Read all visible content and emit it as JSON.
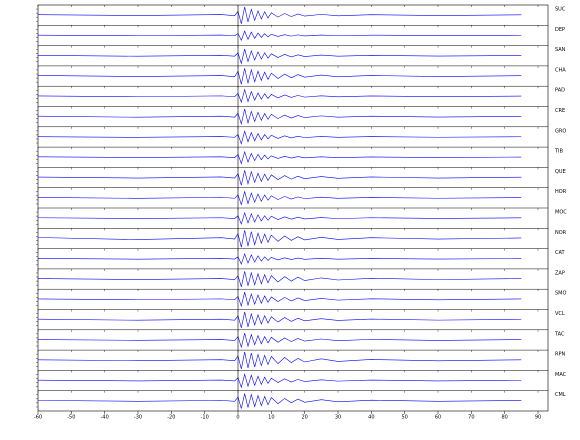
{
  "chart_data": {
    "type": "line",
    "color": "#0000ff",
    "x": [
      -60,
      -30,
      -5,
      -1,
      0,
      1,
      2,
      3,
      4,
      5,
      6,
      7,
      8,
      9,
      10,
      12,
      14,
      16,
      18,
      20,
      25,
      30,
      40,
      60,
      85
    ],
    "xlim": [
      -60,
      93
    ],
    "xticks": [
      -60,
      -50,
      -40,
      -30,
      -20,
      -10,
      0,
      10,
      20,
      30,
      40,
      50,
      60,
      70,
      80,
      90
    ],
    "ylim": [
      -1,
      1
    ],
    "series": [
      {
        "name": "SUC",
        "values": [
          0.05,
          -0.04,
          0.06,
          -0.05,
          0.4,
          -0.9,
          0.85,
          -0.7,
          0.6,
          -0.55,
          0.45,
          -0.4,
          0.35,
          -0.3,
          0.25,
          -0.2,
          0.18,
          -0.15,
          0.12,
          -0.1,
          0.08,
          -0.07,
          0.05,
          -0.04,
          0.03
        ]
      },
      {
        "name": "DEP",
        "values": [
          0.03,
          -0.03,
          0.04,
          -0.03,
          0.2,
          -0.5,
          0.45,
          -0.4,
          0.35,
          -0.3,
          0.25,
          -0.2,
          0.18,
          -0.15,
          0.12,
          -0.1,
          0.08,
          -0.07,
          0.06,
          -0.05,
          0.04,
          -0.03,
          0.03,
          -0.02,
          0.02
        ]
      },
      {
        "name": "SAN",
        "values": [
          0.04,
          -0.05,
          0.04,
          -0.04,
          0.3,
          -0.8,
          0.7,
          -0.6,
          0.5,
          -0.45,
          0.4,
          -0.35,
          0.3,
          -0.25,
          0.2,
          -0.18,
          0.15,
          -0.12,
          0.1,
          -0.08,
          0.07,
          -0.05,
          0.04,
          -0.03,
          0.03
        ]
      },
      {
        "name": "CHA",
        "values": [
          0.06,
          -0.05,
          0.05,
          -0.06,
          0.5,
          -0.85,
          0.8,
          -0.75,
          0.65,
          -0.6,
          0.5,
          -0.45,
          0.4,
          -0.35,
          0.3,
          -0.25,
          0.2,
          -0.18,
          0.15,
          -0.12,
          0.1,
          -0.08,
          0.06,
          -0.05,
          0.04
        ]
      },
      {
        "name": "PAD",
        "values": [
          0.04,
          -0.04,
          0.05,
          -0.04,
          0.3,
          -0.6,
          0.7,
          -0.55,
          0.5,
          -0.4,
          0.35,
          -0.3,
          0.28,
          -0.22,
          0.2,
          -0.16,
          0.14,
          -0.11,
          0.1,
          -0.08,
          0.06,
          -0.05,
          0.04,
          -0.03,
          0.03
        ]
      },
      {
        "name": "CRE",
        "values": [
          0.05,
          -0.06,
          0.05,
          -0.05,
          0.35,
          -0.75,
          0.8,
          -0.65,
          0.55,
          -0.5,
          0.45,
          -0.38,
          0.32,
          -0.28,
          0.25,
          -0.2,
          0.16,
          -0.14,
          0.12,
          -0.1,
          0.08,
          -0.06,
          0.05,
          -0.04,
          0.03
        ]
      },
      {
        "name": "GRO",
        "values": [
          0.03,
          -0.04,
          0.04,
          -0.03,
          0.25,
          -0.7,
          0.6,
          -0.5,
          0.45,
          -0.4,
          0.35,
          -0.3,
          0.25,
          -0.2,
          0.18,
          -0.15,
          0.12,
          -0.1,
          0.08,
          -0.07,
          0.05,
          -0.04,
          0.04,
          -0.03,
          0.02
        ]
      },
      {
        "name": "TIB",
        "values": [
          0.04,
          -0.03,
          0.04,
          -0.04,
          0.3,
          -0.65,
          0.55,
          -0.5,
          0.4,
          -0.35,
          0.3,
          -0.25,
          0.22,
          -0.18,
          0.15,
          -0.12,
          0.1,
          -0.08,
          0.07,
          -0.06,
          0.05,
          -0.04,
          0.03,
          -0.03,
          0.02
        ]
      },
      {
        "name": "QUE",
        "values": [
          0.05,
          -0.05,
          0.06,
          -0.05,
          0.4,
          -0.8,
          0.75,
          -0.65,
          0.6,
          -0.5,
          0.45,
          -0.4,
          0.35,
          -0.3,
          0.28,
          -0.22,
          0.2,
          -0.16,
          0.14,
          -0.12,
          0.1,
          -0.08,
          0.06,
          -0.05,
          0.04
        ]
      },
      {
        "name": "HOR",
        "values": [
          0.04,
          -0.05,
          0.05,
          -0.04,
          0.3,
          -0.7,
          0.65,
          -0.6,
          0.5,
          -0.45,
          0.4,
          -0.35,
          0.3,
          -0.25,
          0.22,
          -0.18,
          0.15,
          -0.12,
          0.1,
          -0.08,
          0.07,
          -0.05,
          0.04,
          -0.04,
          0.03
        ]
      },
      {
        "name": "MOC",
        "values": [
          0.04,
          -0.04,
          0.04,
          -0.04,
          0.25,
          -0.6,
          0.55,
          -0.5,
          0.45,
          -0.4,
          0.35,
          -0.3,
          0.25,
          -0.22,
          0.2,
          -0.16,
          0.14,
          -0.11,
          0.1,
          -0.08,
          0.06,
          -0.05,
          0.04,
          -0.03,
          0.03
        ]
      },
      {
        "name": "NOR",
        "values": [
          0.1,
          -0.12,
          0.08,
          -0.06,
          0.5,
          -0.9,
          0.85,
          -0.8,
          0.7,
          -0.65,
          0.55,
          -0.5,
          0.45,
          -0.4,
          0.35,
          -0.3,
          0.25,
          -0.2,
          0.18,
          -0.15,
          0.12,
          -0.1,
          0.08,
          -0.06,
          0.05
        ]
      },
      {
        "name": "CAT",
        "values": [
          0.03,
          -0.04,
          0.04,
          -0.03,
          0.2,
          -0.55,
          0.5,
          -0.45,
          0.4,
          -0.35,
          0.3,
          -0.25,
          0.2,
          -0.18,
          0.15,
          -0.12,
          0.1,
          -0.08,
          0.07,
          -0.06,
          0.05,
          -0.04,
          0.03,
          -0.03,
          0.02
        ]
      },
      {
        "name": "ZAP",
        "values": [
          0.05,
          -0.05,
          0.05,
          -0.05,
          0.35,
          -0.8,
          0.8,
          -0.7,
          0.65,
          -0.6,
          0.55,
          -0.5,
          0.45,
          -0.4,
          0.35,
          -0.3,
          0.25,
          -0.22,
          0.2,
          -0.16,
          0.12,
          -0.1,
          0.08,
          -0.06,
          0.05
        ]
      },
      {
        "name": "SMO",
        "values": [
          0.04,
          -0.04,
          0.05,
          -0.04,
          0.3,
          -0.7,
          0.75,
          -0.6,
          0.55,
          -0.5,
          0.45,
          -0.4,
          0.35,
          -0.3,
          0.25,
          -0.22,
          0.2,
          -0.16,
          0.14,
          -0.12,
          0.1,
          -0.08,
          0.06,
          -0.05,
          0.04
        ]
      },
      {
        "name": "VCL",
        "values": [
          0.05,
          -0.06,
          0.05,
          -0.05,
          0.4,
          -0.85,
          0.8,
          -0.75,
          0.6,
          -0.55,
          0.5,
          -0.45,
          0.4,
          -0.35,
          0.3,
          -0.25,
          0.22,
          -0.18,
          0.15,
          -0.12,
          0.1,
          -0.08,
          0.06,
          -0.05,
          0.04
        ]
      },
      {
        "name": "TAC",
        "values": [
          0.04,
          -0.04,
          0.04,
          -0.05,
          0.35,
          -0.75,
          0.7,
          -0.65,
          0.55,
          -0.5,
          0.45,
          -0.4,
          0.35,
          -0.3,
          0.28,
          -0.24,
          0.2,
          -0.17,
          0.15,
          -0.12,
          0.1,
          -0.08,
          0.06,
          -0.05,
          0.04
        ]
      },
      {
        "name": "RPN",
        "values": [
          0.05,
          -0.05,
          0.06,
          -0.05,
          0.45,
          -0.9,
          0.85,
          -0.8,
          0.75,
          -0.7,
          0.6,
          -0.55,
          0.5,
          -0.45,
          0.4,
          -0.35,
          0.3,
          -0.25,
          0.2,
          -0.18,
          0.15,
          -0.12,
          0.08,
          -0.06,
          0.05
        ]
      },
      {
        "name": "MAC",
        "values": [
          0.04,
          -0.04,
          0.05,
          -0.04,
          0.3,
          -0.7,
          0.65,
          -0.6,
          0.55,
          -0.5,
          0.45,
          -0.4,
          0.35,
          -0.3,
          0.25,
          -0.2,
          0.18,
          -0.15,
          0.12,
          -0.1,
          0.08,
          -0.06,
          0.05,
          -0.04,
          0.03
        ]
      },
      {
        "name": "CML",
        "values": [
          0.05,
          -0.05,
          0.05,
          -0.05,
          0.4,
          -0.8,
          0.75,
          -0.7,
          0.65,
          -0.6,
          0.55,
          -0.5,
          0.45,
          -0.4,
          0.35,
          -0.3,
          0.25,
          -0.2,
          0.18,
          -0.15,
          0.12,
          -0.1,
          0.07,
          -0.05,
          0.04
        ]
      }
    ]
  }
}
